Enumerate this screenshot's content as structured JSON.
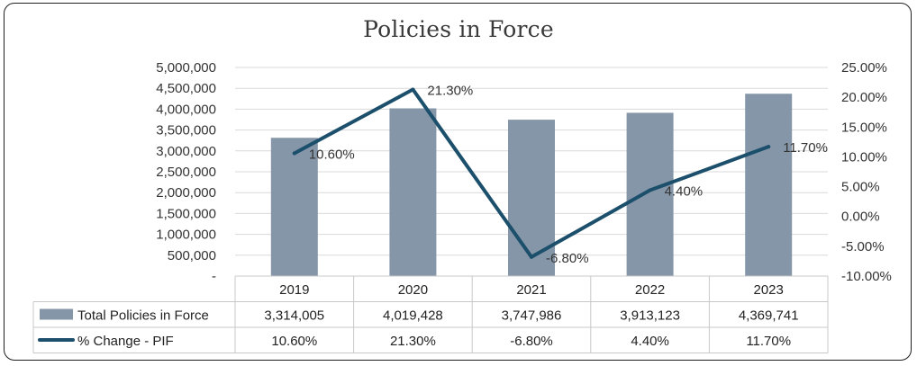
{
  "chart_data": {
    "type": "bar",
    "title": "Policies in Force",
    "categories": [
      "2019",
      "2020",
      "2021",
      "2022",
      "2023"
    ],
    "series": [
      {
        "name": "Total Policies in Force",
        "type": "bar",
        "axis": "left",
        "color": "#8596a8",
        "values": [
          3314005,
          4019428,
          3747986,
          3913123,
          4369741
        ],
        "table_values": [
          "3,314,005",
          "4,019,428",
          "3,747,986",
          "3,913,123",
          "4,369,741"
        ]
      },
      {
        "name": "% Change - PIF",
        "type": "line",
        "axis": "right",
        "color": "#1b4f6b",
        "values": [
          10.6,
          21.3,
          -6.8,
          4.4,
          11.7
        ],
        "labels": [
          "10.60%",
          "21.30%",
          "-6.80%",
          "4.40%",
          "11.70%"
        ]
      }
    ],
    "y_left": {
      "min": 0,
      "max": 5000000,
      "ticks": [
        "-",
        "500,000",
        "1,000,000",
        "1,500,000",
        "2,000,000",
        "2,500,000",
        "3,000,000",
        "3,500,000",
        "4,000,000",
        "4,500,000",
        "5,000,000"
      ]
    },
    "y_right": {
      "min": -10,
      "max": 25,
      "ticks": [
        "-10.00%",
        "-5.00%",
        "0.00%",
        "5.00%",
        "10.00%",
        "15.00%",
        "20.00%",
        "25.00%"
      ]
    },
    "grid": true,
    "legend": "data-table"
  }
}
